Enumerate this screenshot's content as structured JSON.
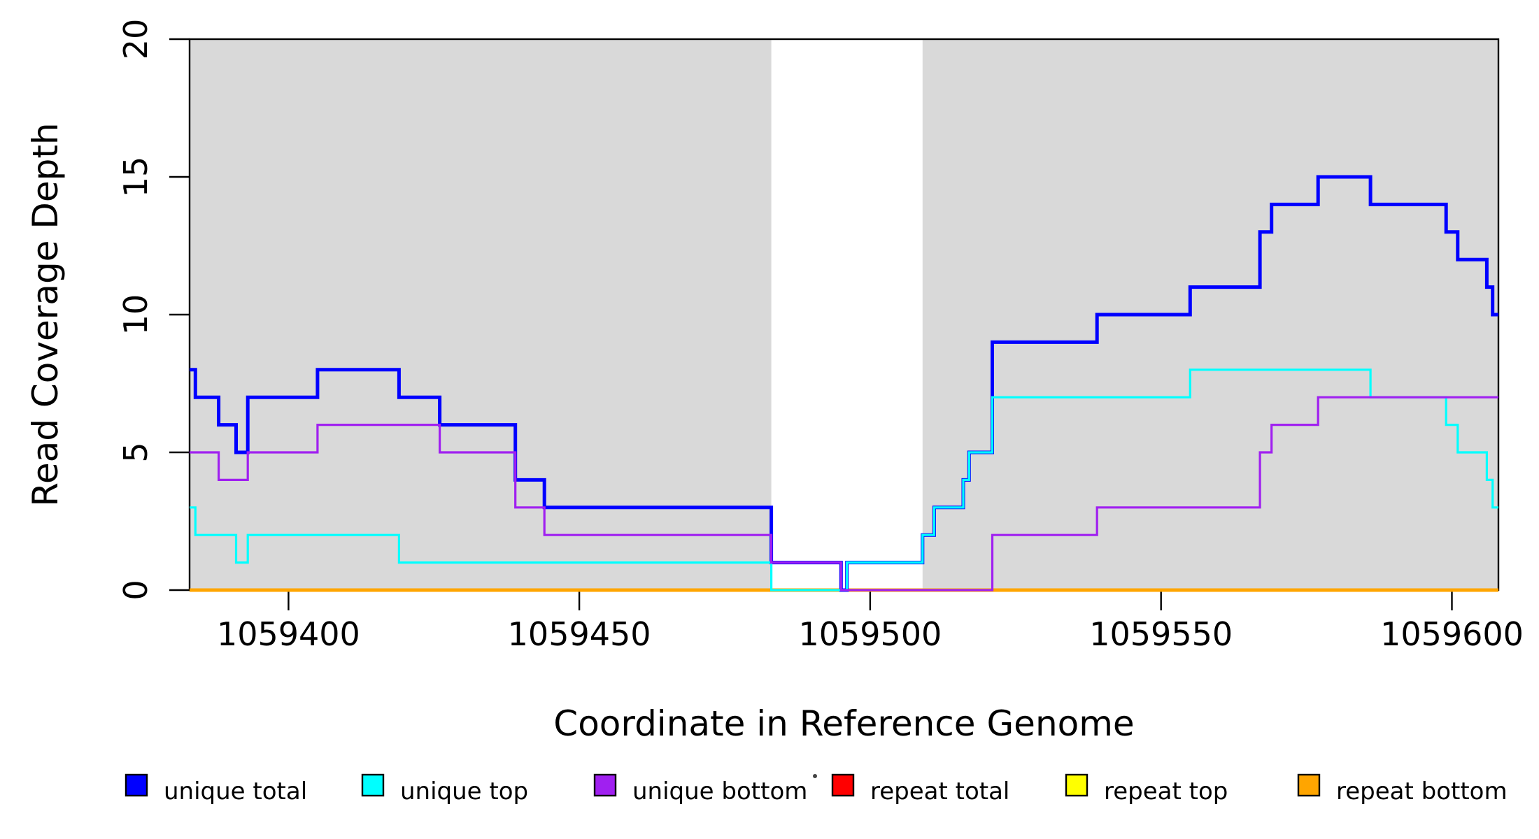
{
  "figure": {
    "x_axis_title": "Coordinate in Reference Genome",
    "y_axis_title": "Read Coverage Depth"
  },
  "chart_data": {
    "type": "line",
    "subtype": "step-coverage",
    "title": "",
    "xlabel": "Coordinate in Reference Genome",
    "ylabel": "Read Coverage Depth",
    "x_domain": [
      1059383,
      1059608
    ],
    "y_domain": [
      0,
      20
    ],
    "grid": false,
    "x_ticks": {
      "values": [
        1059400,
        1059450,
        1059500,
        1059550,
        1059600
      ],
      "labels": [
        "1059400",
        "1059450",
        "1059500",
        "1059550",
        "1059600"
      ]
    },
    "y_ticks": {
      "values": [
        0,
        5,
        10,
        15,
        20
      ],
      "labels": [
        "0",
        "5",
        "10",
        "15",
        "20"
      ]
    },
    "shading": {
      "color": "#D9D9D9",
      "regions": [
        [
          1059383,
          1059483
        ],
        [
          1059509,
          1059608
        ]
      ]
    },
    "series": [
      {
        "name": "unique total",
        "color": "#0000FF",
        "line_width": 5,
        "draw_order": 4,
        "breakpoints": [
          [
            1059383,
            8
          ],
          [
            1059384,
            7
          ],
          [
            1059388,
            6
          ],
          [
            1059391,
            5
          ],
          [
            1059393,
            7
          ],
          [
            1059405,
            8
          ],
          [
            1059419,
            7
          ],
          [
            1059426,
            6
          ],
          [
            1059439,
            4
          ],
          [
            1059444,
            3
          ],
          [
            1059483,
            1
          ],
          [
            1059495,
            0
          ],
          [
            1059496,
            1
          ],
          [
            1059509,
            2
          ],
          [
            1059511,
            3
          ],
          [
            1059516,
            4
          ],
          [
            1059517,
            5
          ],
          [
            1059521,
            9
          ],
          [
            1059539,
            10
          ],
          [
            1059555,
            11
          ],
          [
            1059567,
            13
          ],
          [
            1059569,
            14
          ],
          [
            1059577,
            15
          ],
          [
            1059586,
            14
          ],
          [
            1059599,
            13
          ],
          [
            1059601,
            12
          ],
          [
            1059606,
            11
          ],
          [
            1059607,
            10
          ]
        ]
      },
      {
        "name": "unique top",
        "color": "#00FFFF",
        "line_width": 3.2,
        "draw_order": 5,
        "breakpoints": [
          [
            1059383,
            3
          ],
          [
            1059384,
            2
          ],
          [
            1059391,
            1
          ],
          [
            1059393,
            2
          ],
          [
            1059419,
            1
          ],
          [
            1059483,
            0
          ],
          [
            1059496,
            1
          ],
          [
            1059509,
            2
          ],
          [
            1059511,
            3
          ],
          [
            1059516,
            4
          ],
          [
            1059517,
            5
          ],
          [
            1059521,
            7
          ],
          [
            1059555,
            8
          ],
          [
            1059586,
            7
          ],
          [
            1059599,
            6
          ],
          [
            1059601,
            5
          ],
          [
            1059606,
            4
          ],
          [
            1059607,
            3
          ]
        ]
      },
      {
        "name": "unique bottom",
        "color": "#A020F0",
        "line_width": 3.2,
        "draw_order": 6,
        "breakpoints": [
          [
            1059383,
            5
          ],
          [
            1059388,
            4
          ],
          [
            1059393,
            5
          ],
          [
            1059405,
            6
          ],
          [
            1059426,
            5
          ],
          [
            1059439,
            3
          ],
          [
            1059444,
            2
          ],
          [
            1059483,
            1
          ],
          [
            1059495,
            0
          ],
          [
            1059521,
            2
          ],
          [
            1059539,
            3
          ],
          [
            1059567,
            5
          ],
          [
            1059569,
            6
          ],
          [
            1059577,
            7
          ]
        ]
      },
      {
        "name": "repeat total",
        "color": "#FF0000",
        "line_width": 3,
        "draw_order": 1,
        "breakpoints": [
          [
            1059383,
            0
          ]
        ]
      },
      {
        "name": "repeat top",
        "color": "#FFFF00",
        "line_width": 3,
        "draw_order": 2,
        "breakpoints": [
          [
            1059383,
            0
          ]
        ]
      },
      {
        "name": "repeat bottom",
        "color": "#FFA500",
        "line_width": 5,
        "draw_order": 3,
        "breakpoints": [
          [
            1059383,
            0
          ]
        ]
      }
    ],
    "legend": [
      {
        "label": "unique total",
        "color": "#0000FF"
      },
      {
        "label": "unique top",
        "color": "#00FFFF"
      },
      {
        "label": "unique bottom",
        "color": "#A020F0"
      },
      {
        "label": "repeat total",
        "color": "#FF0000"
      },
      {
        "label": "repeat top",
        "color": "#FFFF00"
      },
      {
        "label": "repeat bottom",
        "color": "#FFA500"
      }
    ],
    "legend_position": "bottom"
  }
}
